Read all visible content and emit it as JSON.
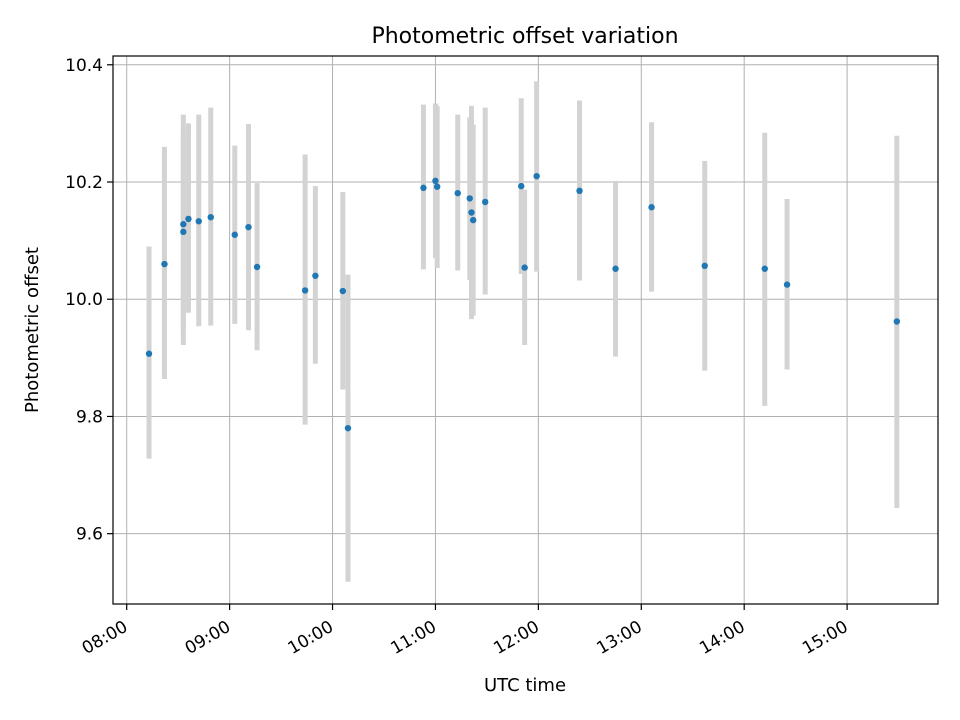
{
  "chart_data": {
    "type": "scatter",
    "title": "Photometric offset variation",
    "xlabel": "UTC time",
    "ylabel": "Photometric offset",
    "xlim": [
      "07:52",
      "15:53"
    ],
    "ylim": [
      9.48,
      10.415
    ],
    "x_ticks": [
      "08:00",
      "09:00",
      "10:00",
      "11:00",
      "12:00",
      "13:00",
      "14:00",
      "15:00"
    ],
    "y_ticks": [
      9.6,
      9.8,
      10.0,
      10.2,
      10.4
    ],
    "y_tick_labels": [
      "9.6",
      "9.8",
      "10.0",
      "10.2",
      "10.4"
    ],
    "grid": true,
    "errorbar_color": "#d3d3d3",
    "point_color": "#1f77b4",
    "series": [
      {
        "points": [
          {
            "t": "08:13",
            "y": 9.907,
            "lo": 9.728,
            "hi": 10.09
          },
          {
            "t": "08:22",
            "y": 10.06,
            "lo": 9.864,
            "hi": 10.26
          },
          {
            "t": "08:33",
            "y": 10.128,
            "lo": 9.922,
            "hi": 10.315
          },
          {
            "t": "08:33",
            "y": 10.115,
            "lo": 9.95,
            "hi": 10.28
          },
          {
            "t": "08:36",
            "y": 10.137,
            "lo": 9.977,
            "hi": 10.3
          },
          {
            "t": "08:42",
            "y": 10.133,
            "lo": 9.954,
            "hi": 10.315
          },
          {
            "t": "08:49",
            "y": 10.14,
            "lo": 9.955,
            "hi": 10.327
          },
          {
            "t": "09:03",
            "y": 10.11,
            "lo": 9.958,
            "hi": 10.262
          },
          {
            "t": "09:11",
            "y": 10.123,
            "lo": 9.947,
            "hi": 10.299
          },
          {
            "t": "09:16",
            "y": 10.055,
            "lo": 9.913,
            "hi": 10.198
          },
          {
            "t": "09:44",
            "y": 10.015,
            "lo": 9.786,
            "hi": 10.247
          },
          {
            "t": "09:50",
            "y": 10.04,
            "lo": 9.89,
            "hi": 10.193
          },
          {
            "t": "10:06",
            "y": 10.014,
            "lo": 9.846,
            "hi": 10.183
          },
          {
            "t": "10:09",
            "y": 9.78,
            "lo": 9.518,
            "hi": 10.042
          },
          {
            "t": "10:53",
            "y": 10.19,
            "lo": 10.051,
            "hi": 10.332
          },
          {
            "t": "11:00",
            "y": 10.202,
            "lo": 10.07,
            "hi": 10.334
          },
          {
            "t": "11:01",
            "y": 10.192,
            "lo": 10.053,
            "hi": 10.33
          },
          {
            "t": "11:13",
            "y": 10.181,
            "lo": 10.049,
            "hi": 10.315
          },
          {
            "t": "11:20",
            "y": 10.172,
            "lo": 10.033,
            "hi": 10.31
          },
          {
            "t": "11:21",
            "y": 10.148,
            "lo": 9.966,
            "hi": 10.33
          },
          {
            "t": "11:22",
            "y": 10.135,
            "lo": 9.972,
            "hi": 10.298
          },
          {
            "t": "11:29",
            "y": 10.166,
            "lo": 10.008,
            "hi": 10.327
          },
          {
            "t": "11:50",
            "y": 10.193,
            "lo": 10.043,
            "hi": 10.343
          },
          {
            "t": "11:52",
            "y": 10.054,
            "lo": 9.922,
            "hi": 10.187
          },
          {
            "t": "11:59",
            "y": 10.21,
            "lo": 10.047,
            "hi": 10.372
          },
          {
            "t": "12:24",
            "y": 10.185,
            "lo": 10.032,
            "hi": 10.339
          },
          {
            "t": "12:45",
            "y": 10.052,
            "lo": 9.902,
            "hi": 10.202
          },
          {
            "t": "13:06",
            "y": 10.157,
            "lo": 10.013,
            "hi": 10.302
          },
          {
            "t": "13:37",
            "y": 10.057,
            "lo": 9.878,
            "hi": 10.236
          },
          {
            "t": "14:12",
            "y": 10.052,
            "lo": 9.818,
            "hi": 10.284
          },
          {
            "t": "14:25",
            "y": 10.025,
            "lo": 9.88,
            "hi": 10.171
          },
          {
            "t": "15:29",
            "y": 9.962,
            "lo": 9.644,
            "hi": 10.279
          }
        ]
      }
    ]
  }
}
